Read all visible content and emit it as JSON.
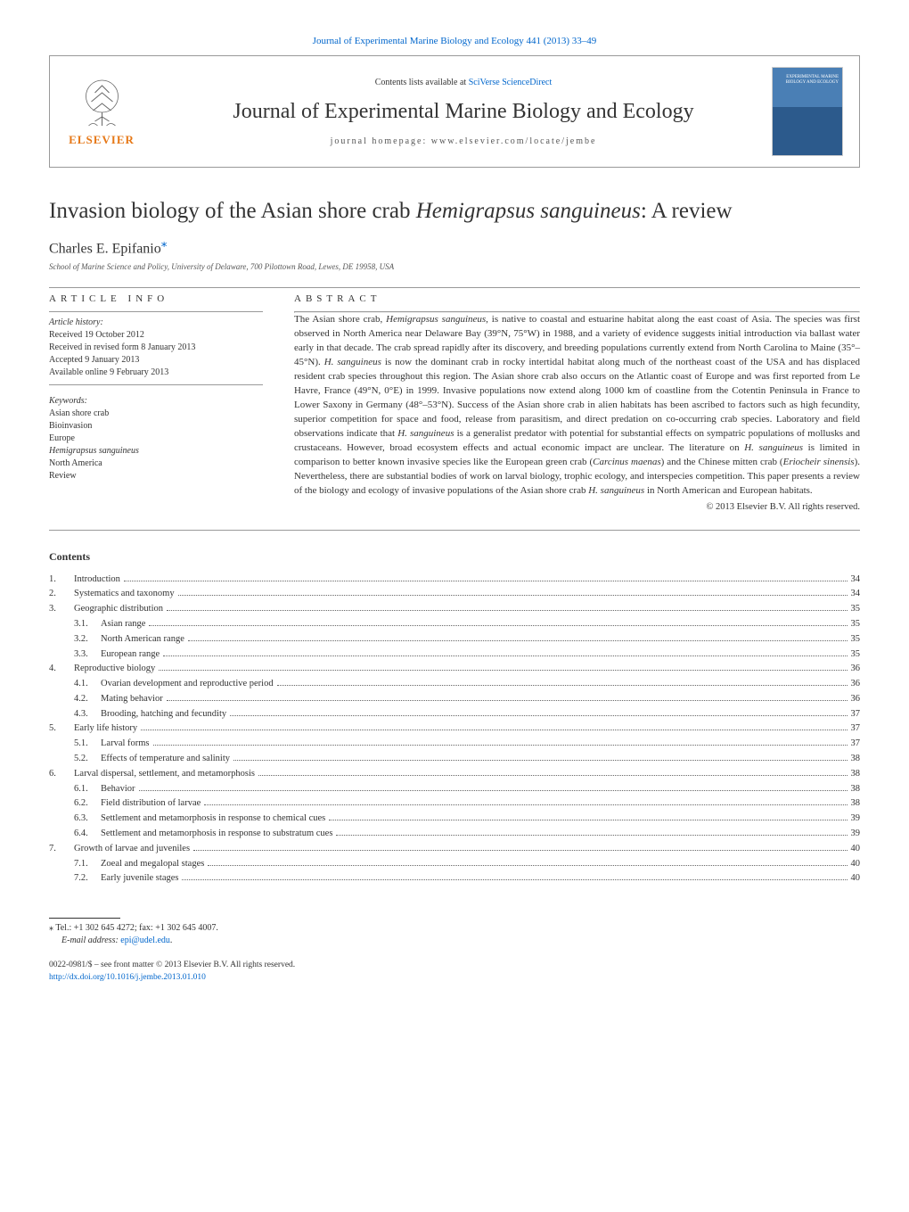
{
  "top_link": "Journal of Experimental Marine Biology and Ecology 441 (2013) 33–49",
  "header": {
    "contents_text": "Contents lists available at ",
    "contents_link": "SciVerse ScienceDirect",
    "journal_name": "Journal of Experimental Marine Biology and Ecology",
    "homepage": "journal homepage: www.elsevier.com/locate/jembe",
    "publisher": "ELSEVIER",
    "cover_label": "EXPERIMENTAL MARINE BIOLOGY AND ECOLOGY"
  },
  "article": {
    "title_pre": "Invasion biology of the Asian shore crab ",
    "title_italic": "Hemigrapsus sanguineus",
    "title_post": ": A review",
    "author": "Charles E. Epifanio",
    "author_mark": "⁎",
    "affiliation": "School of Marine Science and Policy, University of Delaware, 700 Pilottown Road, Lewes, DE 19958, USA"
  },
  "info": {
    "heading": "article info",
    "history_label": "Article history:",
    "history": [
      "Received 19 October 2012",
      "Received in revised form 8 January 2013",
      "Accepted 9 January 2013",
      "Available online 9 February 2013"
    ],
    "keywords_label": "Keywords:",
    "keywords": [
      {
        "text": "Asian shore crab",
        "italic": false
      },
      {
        "text": "Bioinvasion",
        "italic": false
      },
      {
        "text": "Europe",
        "italic": false
      },
      {
        "text": "Hemigrapsus sanguineus",
        "italic": true
      },
      {
        "text": "North America",
        "italic": false
      },
      {
        "text": "Review",
        "italic": false
      }
    ]
  },
  "abstract": {
    "heading": "abstract",
    "text_parts": [
      {
        "t": "The Asian shore crab, ",
        "i": false
      },
      {
        "t": "Hemigrapsus sanguineus",
        "i": true
      },
      {
        "t": ", is native to coastal and estuarine habitat along the east coast of Asia. The species was first observed in North America near Delaware Bay (39°N, 75°W) in 1988, and a variety of evidence suggests initial introduction via ballast water early in that decade. The crab spread rapidly after its discovery, and breeding populations currently extend from North Carolina to Maine (35°–45°N). ",
        "i": false
      },
      {
        "t": "H. sanguineus",
        "i": true
      },
      {
        "t": " is now the dominant crab in rocky intertidal habitat along much of the northeast coast of the USA and has displaced resident crab species throughout this region. The Asian shore crab also occurs on the Atlantic coast of Europe and was first reported from Le Havre, France (49°N, 0°E) in 1999. Invasive populations now extend along 1000 km of coastline from the Cotentin Peninsula in France to Lower Saxony in Germany (48°–53°N). Success of the Asian shore crab in alien habitats has been ascribed to factors such as high fecundity, superior competition for space and food, release from parasitism, and direct predation on co-occurring crab species. Laboratory and field observations indicate that ",
        "i": false
      },
      {
        "t": "H. sanguineus",
        "i": true
      },
      {
        "t": " is a generalist predator with potential for substantial effects on sympatric populations of mollusks and crustaceans. However, broad ecosystem effects and actual economic impact are unclear. The literature on ",
        "i": false
      },
      {
        "t": "H. sanguineus",
        "i": true
      },
      {
        "t": " is limited in comparison to better known invasive species like the European green crab (",
        "i": false
      },
      {
        "t": "Carcinus maenas",
        "i": true
      },
      {
        "t": ") and the Chinese mitten crab (",
        "i": false
      },
      {
        "t": "Eriocheir sinensis",
        "i": true
      },
      {
        "t": "). Nevertheless, there are substantial bodies of work on larval biology, trophic ecology, and interspecies competition. This paper presents a review of the biology and ecology of invasive populations of the Asian shore crab ",
        "i": false
      },
      {
        "t": "H. sanguineus",
        "i": true
      },
      {
        "t": " in North American and European habitats.",
        "i": false
      }
    ],
    "copyright": "© 2013 Elsevier B.V. All rights reserved."
  },
  "contents": {
    "heading": "Contents",
    "items": [
      {
        "num": "1.",
        "sub": "",
        "title": "Introduction",
        "page": "34"
      },
      {
        "num": "2.",
        "sub": "",
        "title": "Systematics and taxonomy",
        "page": "34"
      },
      {
        "num": "3.",
        "sub": "",
        "title": "Geographic distribution",
        "page": "35"
      },
      {
        "num": "",
        "sub": "3.1.",
        "title": "Asian range",
        "page": "35"
      },
      {
        "num": "",
        "sub": "3.2.",
        "title": "North American range",
        "page": "35"
      },
      {
        "num": "",
        "sub": "3.3.",
        "title": "European range",
        "page": "35"
      },
      {
        "num": "4.",
        "sub": "",
        "title": "Reproductive biology",
        "page": "36"
      },
      {
        "num": "",
        "sub": "4.1.",
        "title": "Ovarian development and reproductive period",
        "page": "36"
      },
      {
        "num": "",
        "sub": "4.2.",
        "title": "Mating behavior",
        "page": "36"
      },
      {
        "num": "",
        "sub": "4.3.",
        "title": "Brooding, hatching and fecundity",
        "page": "37"
      },
      {
        "num": "5.",
        "sub": "",
        "title": "Early life history",
        "page": "37"
      },
      {
        "num": "",
        "sub": "5.1.",
        "title": "Larval forms",
        "page": "37"
      },
      {
        "num": "",
        "sub": "5.2.",
        "title": "Effects of temperature and salinity",
        "page": "38"
      },
      {
        "num": "6.",
        "sub": "",
        "title": "Larval dispersal, settlement, and metamorphosis",
        "page": "38"
      },
      {
        "num": "",
        "sub": "6.1.",
        "title": "Behavior",
        "page": "38"
      },
      {
        "num": "",
        "sub": "6.2.",
        "title": "Field distribution of larvae",
        "page": "38"
      },
      {
        "num": "",
        "sub": "6.3.",
        "title": "Settlement and metamorphosis in response to chemical cues",
        "page": "39"
      },
      {
        "num": "",
        "sub": "6.4.",
        "title": "Settlement and metamorphosis in response to substratum cues",
        "page": "39"
      },
      {
        "num": "7.",
        "sub": "",
        "title": "Growth of larvae and juveniles",
        "page": "40"
      },
      {
        "num": "",
        "sub": "7.1.",
        "title": "Zoeal and megalopal stages",
        "page": "40"
      },
      {
        "num": "",
        "sub": "7.2.",
        "title": "Early juvenile stages",
        "page": "40"
      }
    ]
  },
  "footer": {
    "corr": "⁎ Tel.: +1 302 645 4272; fax: +1 302 645 4007.",
    "email_label": "E-mail address: ",
    "email": "epi@udel.edu",
    "issn": "0022-0981/$ – see front matter © 2013 Elsevier B.V. All rights reserved.",
    "doi": "http://dx.doi.org/10.1016/j.jembe.2013.01.010"
  },
  "colors": {
    "link": "#0066cc",
    "orange": "#e67817",
    "text": "#333333",
    "rule": "#999999"
  }
}
